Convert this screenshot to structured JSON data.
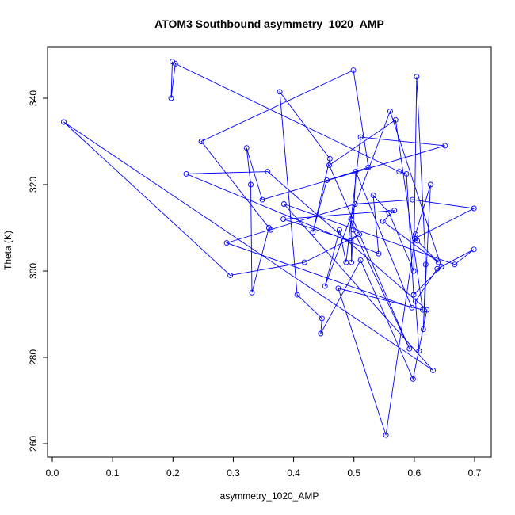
{
  "chart_data": {
    "type": "line",
    "title": "ATOM3 Southbound asymmetry_1020_AMP",
    "xlabel": "asymmetry_1020_AMP",
    "ylabel": "Theta (K)",
    "xlim": [
      0.0,
      0.7
    ],
    "ylim": [
      260,
      350
    ],
    "xticks": [
      0.0,
      0.1,
      0.2,
      0.3,
      0.4,
      0.5,
      0.6,
      0.7
    ],
    "yticks": [
      260,
      280,
      300,
      320,
      340
    ],
    "xtick_labels": [
      "0.0",
      "0.1",
      "0.2",
      "0.3",
      "0.4",
      "0.5",
      "0.6",
      "0.7"
    ],
    "ytick_labels": [
      "260",
      "280",
      "300",
      "320",
      "340"
    ],
    "grid": false,
    "legend": "none",
    "markers": "open-circle",
    "series": [
      {
        "color": "#0000FF",
        "x": [
          0.199,
          0.197,
          0.204,
          0.575,
          0.587,
          0.599,
          0.645,
          0.56,
          0.452,
          0.476,
          0.487,
          0.511,
          0.651,
          0.348,
          0.322,
          0.329,
          0.331,
          0.359,
          0.362,
          0.247,
          0.499,
          0.524,
          0.455,
          0.432,
          0.46,
          0.377,
          0.406,
          0.447,
          0.445,
          0.511,
          0.598,
          0.621,
          0.357,
          0.222,
          0.541,
          0.532,
          0.558,
          0.599,
          0.604,
          0.619,
          0.615,
          0.627,
          0.602,
          0.553,
          0.474,
          0.614,
          0.569,
          0.459,
          0.592,
          0.499,
          0.495,
          0.496,
          0.503,
          0.596,
          0.289,
          0.502,
          0.597,
          0.699,
          0.601,
          0.605,
          0.64,
          0.548,
          0.567,
          0.383,
          0.495,
          0.509,
          0.418,
          0.295,
          0.019,
          0.631,
          0.384,
          0.667,
          0.699,
          0.638,
          0.602,
          0.608
        ],
        "y": [
          348.5,
          340.0,
          348.0,
          323.0,
          322.5,
          294.5,
          301.0,
          337.0,
          296.5,
          309.5,
          302.0,
          331.0,
          329.0,
          316.5,
          328.5,
          320.0,
          295.0,
          310.0,
          309.5,
          330.0,
          346.5,
          324.0,
          321.0,
          309.0,
          326.0,
          341.5,
          294.5,
          289.0,
          285.5,
          302.5,
          275.0,
          291.0,
          323.0,
          322.5,
          304.0,
          317.5,
          313.5,
          300.0,
          345.0,
          301.5,
          286.5,
          320.0,
          308.5,
          262.0,
          296.0,
          291.0,
          335.0,
          324.5,
          282.0,
          309.5,
          312.0,
          302.0,
          323.0,
          291.5,
          306.5,
          315.5,
          316.5,
          314.5,
          307.5,
          307.0,
          302.0,
          311.5,
          314.0,
          312.0,
          307.0,
          308.5,
          302.0,
          299.0,
          334.5,
          277.0,
          315.5,
          301.5,
          305.0,
          300.5,
          293.0,
          281.5
        ]
      }
    ]
  }
}
